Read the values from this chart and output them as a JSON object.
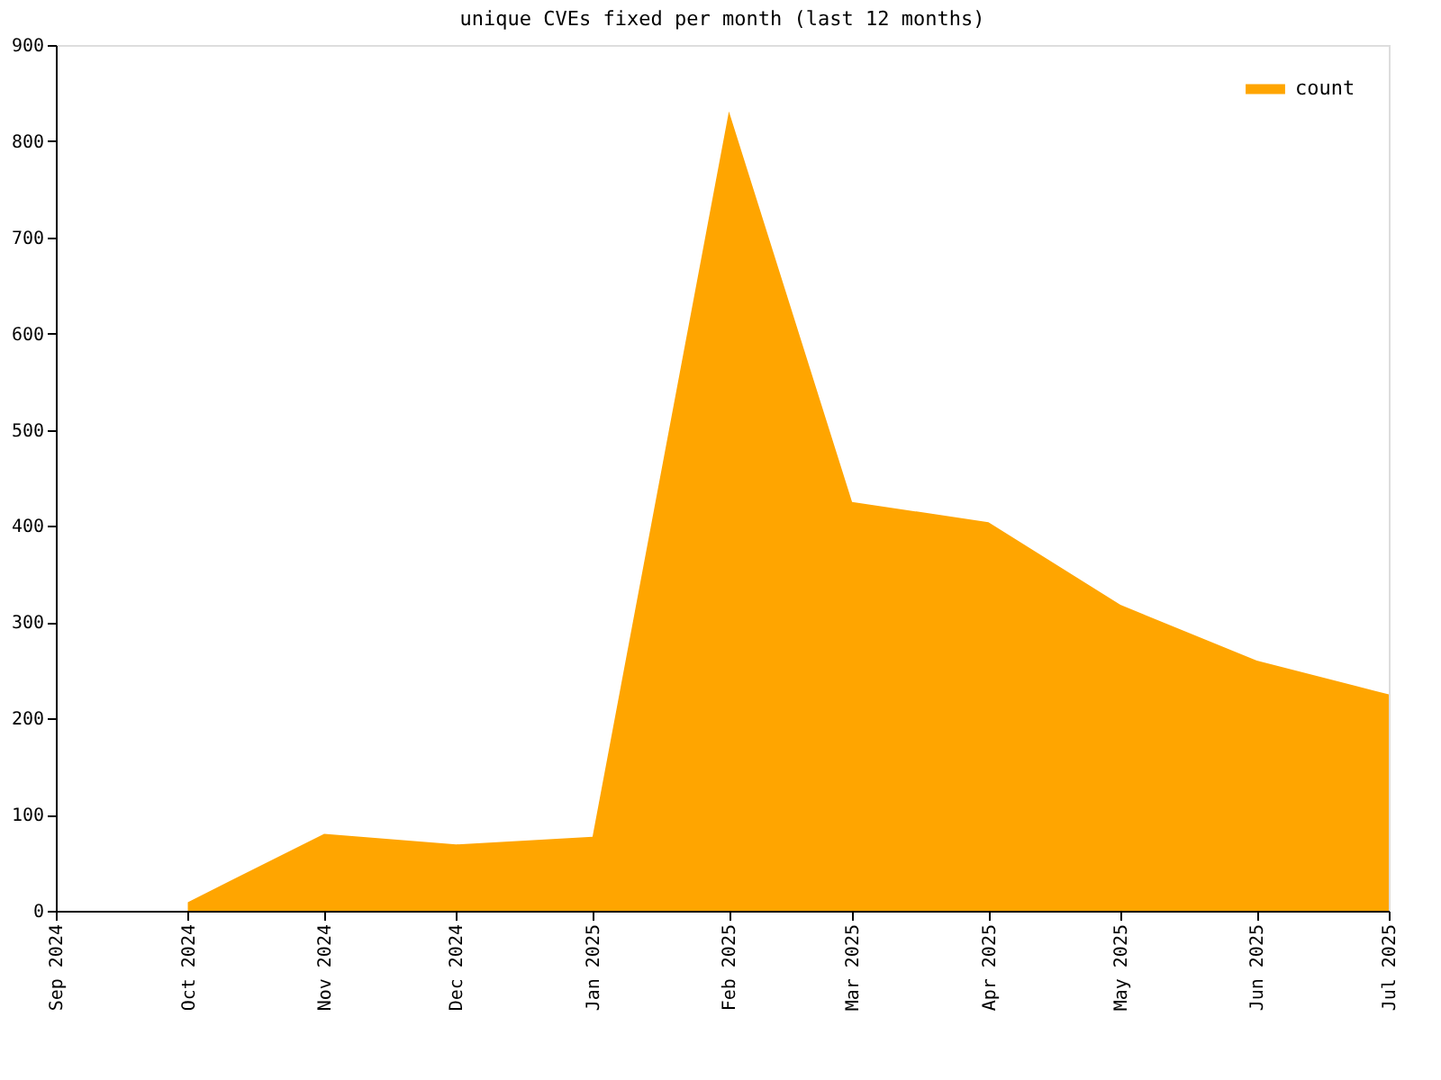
{
  "chart_data": {
    "type": "area",
    "title": "unique CVEs fixed per month (last 12 months)",
    "x": [
      "2024-10",
      "2024-11",
      "2024-12",
      "2025-01",
      "2025-02",
      "2025-03",
      "2025-04",
      "2025-05",
      "2025-06",
      "2025-07"
    ],
    "series": [
      {
        "name": "count",
        "color": "#ffa500",
        "values": [
          9,
          80,
          69,
          77,
          831,
          425,
          404,
          318,
          260,
          225
        ]
      }
    ],
    "xlim": [
      "2024-09",
      "2025-07"
    ],
    "xticks": [
      {
        "value": "2024-09",
        "label": "Sep 2024"
      },
      {
        "value": "2024-10",
        "label": "Oct 2024"
      },
      {
        "value": "2024-11",
        "label": "Nov 2024"
      },
      {
        "value": "2024-12",
        "label": "Dec 2024"
      },
      {
        "value": "2025-01",
        "label": "Jan 2025"
      },
      {
        "value": "2025-02",
        "label": "Feb 2025"
      },
      {
        "value": "2025-03",
        "label": "Mar 2025"
      },
      {
        "value": "2025-04",
        "label": "Apr 2025"
      },
      {
        "value": "2025-05",
        "label": "May 2025"
      },
      {
        "value": "2025-06",
        "label": "Jun 2025"
      },
      {
        "value": "2025-07",
        "label": "Jul 2025"
      }
    ],
    "ylim": [
      0,
      900
    ],
    "yticks": [
      0,
      100,
      200,
      300,
      400,
      500,
      600,
      700,
      800,
      900
    ],
    "grid": false,
    "legend": "top right"
  }
}
